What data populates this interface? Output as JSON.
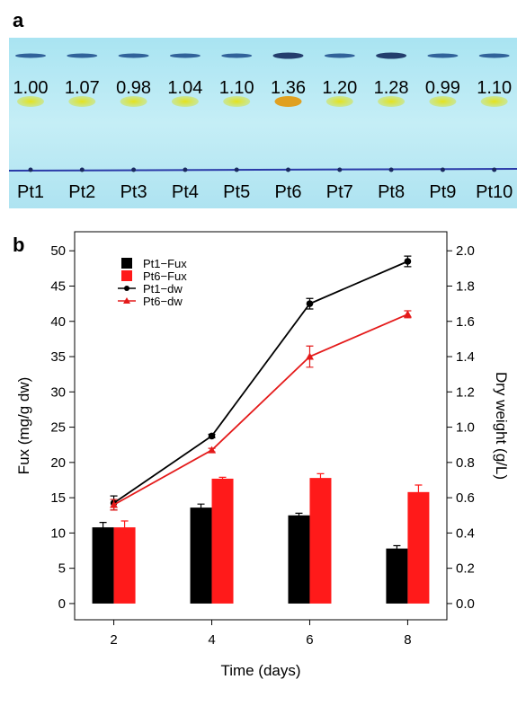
{
  "panel_a": {
    "label": "a",
    "lanes": [
      {
        "name": "Pt1",
        "value": "1.00"
      },
      {
        "name": "Pt2",
        "value": "1.07"
      },
      {
        "name": "Pt3",
        "value": "0.98"
      },
      {
        "name": "Pt4",
        "value": "1.04"
      },
      {
        "name": "Pt5",
        "value": "1.10"
      },
      {
        "name": "Pt6",
        "value": "1.36"
      },
      {
        "name": "Pt7",
        "value": "1.20"
      },
      {
        "name": "Pt8",
        "value": "1.28"
      },
      {
        "name": "Pt9",
        "value": "0.99"
      },
      {
        "name": "Pt10",
        "value": "1.10"
      }
    ]
  },
  "chart_data": {
    "type": "bar",
    "panel_label": "b",
    "x_label": "Time (days)",
    "y_label": "Fux (mg/g dw)",
    "y2_label": "Dry weight (g/L)",
    "x": [
      2,
      4,
      6,
      8
    ],
    "xlim": [
      1.2,
      8.8
    ],
    "xticks": [
      2,
      4,
      6,
      8
    ],
    "ylim": [
      -2.3,
      52.7
    ],
    "yticks": [
      0,
      5,
      10,
      15,
      20,
      25,
      30,
      35,
      40,
      45,
      50
    ],
    "y2lim": [
      -0.092,
      2.108
    ],
    "y2ticks": [
      {
        "value": 0,
        "label": "0.0"
      },
      0.2,
      0.4,
      0.6,
      0.8,
      {
        "value": 1,
        "label": "1.0"
      },
      1.2,
      1.4,
      1.6,
      1.8,
      {
        "value": 2,
        "label": "2.0"
      }
    ],
    "legend": "upper left",
    "series": [
      {
        "name": "Pt1−Fux",
        "type": "bar",
        "color": "#000000",
        "values": [
          10.8,
          13.6,
          12.5,
          7.8
        ],
        "errors": [
          0.7,
          0.5,
          0.3,
          0.4
        ]
      },
      {
        "name": "Pt6−Fux",
        "type": "bar",
        "color": "#ff1a1a",
        "values": [
          10.8,
          17.7,
          17.8,
          15.8
        ],
        "errors": [
          0.9,
          0.2,
          0.6,
          1.0
        ]
      },
      {
        "name": "Pt1−dw",
        "type": "line",
        "marker": "circle",
        "axis": "y2",
        "color": "#000000",
        "values": [
          0.57,
          0.95,
          1.7,
          1.94
        ],
        "errors": [
          0.04,
          0.01,
          0.03,
          0.03
        ]
      },
      {
        "name": "Pt6−dw",
        "type": "line",
        "marker": "triangle",
        "axis": "y2",
        "color": "#e41a1a",
        "values": [
          0.56,
          0.87,
          1.4,
          1.64
        ],
        "errors": [
          0.03,
          0.01,
          0.06,
          0.02
        ]
      }
    ]
  }
}
